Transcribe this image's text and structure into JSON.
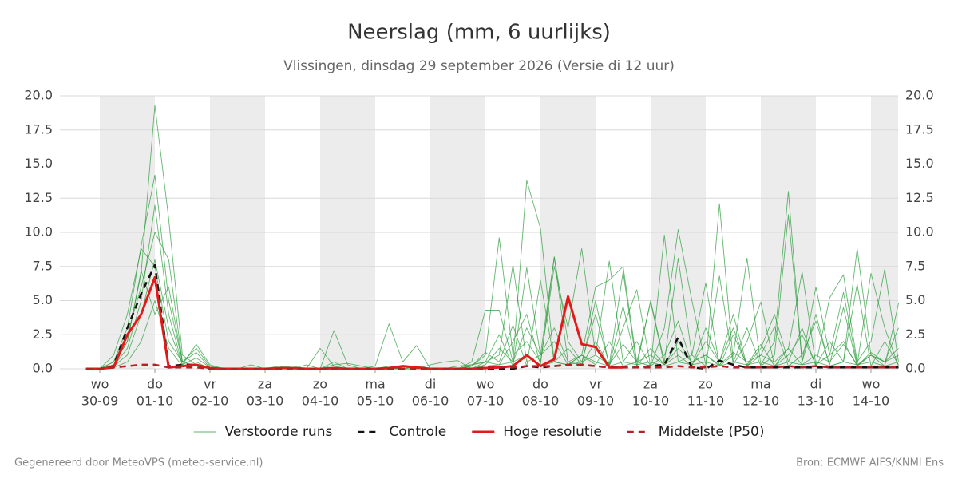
{
  "chart_data": {
    "type": "line",
    "title": "Neerslag (mm, 6 uurlijks)",
    "subtitle": "Vlissingen, dinsdag 29 september 2026 (Versie di 12 uur)",
    "footer_left": "Gegenereerd door MeteoVPS (meteo-service.nl)",
    "footer_right": "Bron: ECMWF AIFS/KNMI Ens",
    "grid": true,
    "legend": "bottom",
    "xlim": [
      -0.725,
      14.493
    ],
    "ylim": [
      0,
      20
    ],
    "yticks": [
      {
        "value": 0,
        "label": "0.0"
      },
      {
        "value": 2.5,
        "label": "2.5"
      },
      {
        "value": 5,
        "label": "5.0"
      },
      {
        "value": 7.5,
        "label": "7.5"
      },
      {
        "value": 10,
        "label": "10.0"
      },
      {
        "value": 12.5,
        "label": "12.5"
      },
      {
        "value": 15,
        "label": "15.0"
      },
      {
        "value": 17.5,
        "label": "17.5"
      },
      {
        "value": 20,
        "label": "20.0"
      }
    ],
    "xticks": [
      {
        "value": 0,
        "label": "wo",
        "date": "30-09"
      },
      {
        "value": 1,
        "label": "do",
        "date": "01-10"
      },
      {
        "value": 2,
        "label": "vr",
        "date": "02-10"
      },
      {
        "value": 3,
        "label": "za",
        "date": "03-10"
      },
      {
        "value": 4,
        "label": "zo",
        "date": "04-10"
      },
      {
        "value": 5,
        "label": "ma",
        "date": "05-10"
      },
      {
        "value": 6,
        "label": "di",
        "date": "06-10"
      },
      {
        "value": 7,
        "label": "wo",
        "date": "07-10"
      },
      {
        "value": 8,
        "label": "do",
        "date": "08-10"
      },
      {
        "value": 9,
        "label": "vr",
        "date": "09-10"
      },
      {
        "value": 10,
        "label": "za",
        "date": "10-10"
      },
      {
        "value": 11,
        "label": "zo",
        "date": "11-10"
      },
      {
        "value": 12,
        "label": "ma",
        "date": "12-10"
      },
      {
        "value": 13,
        "label": "di",
        "date": "13-10"
      },
      {
        "value": 14,
        "label": "wo",
        "date": "14-10"
      }
    ],
    "x": [
      -0.25,
      0,
      0.25,
      0.5,
      0.75,
      1,
      1.25,
      1.5,
      1.75,
      2,
      2.25,
      2.5,
      2.75,
      3,
      3.25,
      3.5,
      3.75,
      4,
      4.25,
      4.5,
      4.75,
      5,
      5.25,
      5.5,
      5.75,
      6,
      6.25,
      6.5,
      6.75,
      7,
      7.25,
      7.5,
      7.75,
      8,
      8.25,
      8.5,
      8.75,
      9,
      9.25,
      9.5,
      9.75,
      10,
      10.25,
      10.5,
      10.75,
      11,
      11.25,
      11.5,
      11.75,
      12,
      12.25,
      12.5,
      12.75,
      13,
      13.25,
      13.5,
      13.75,
      14,
      14.25,
      14.5
    ],
    "series": [
      {
        "name": "Verstoorde runs",
        "color": "#2e9e3e",
        "members": [
          [
            0,
            0,
            0.3,
            2,
            7,
            19.3,
            11,
            1,
            0.3,
            0,
            0,
            0,
            0,
            0,
            0.2,
            0,
            0,
            0,
            0,
            0,
            0,
            0,
            0.2,
            0,
            0,
            0,
            0,
            0,
            0.5,
            4.3,
            4.3,
            0.5,
            13.8,
            10.3,
            0.5,
            0.3,
            1,
            6,
            6.5,
            7.5,
            0.5,
            0.2,
            3,
            10.2,
            5,
            0.3,
            12.1,
            0.5,
            3,
            0.2,
            1,
            11.3,
            0.5,
            4,
            0.2,
            0.5,
            8.8,
            1,
            0.2,
            4.8
          ],
          [
            0,
            0,
            0.5,
            3,
            9,
            14.2,
            5,
            0.5,
            1.5,
            0.2,
            0,
            0,
            0,
            0,
            0,
            0,
            0,
            1.5,
            0.2,
            0,
            0,
            0.2,
            3.3,
            0.5,
            1.7,
            0,
            0,
            0,
            0.2,
            1,
            9.6,
            1,
            2,
            0.5,
            7.5,
            3,
            8.8,
            1,
            7.9,
            0.5,
            2,
            0.2,
            9.8,
            0.5,
            1,
            6.3,
            0.2,
            1,
            8.1,
            0.3,
            2,
            13,
            0.5,
            6,
            1,
            5.6,
            0.3,
            7,
            3,
            0.2
          ],
          [
            0,
            0,
            0.2,
            1.5,
            5,
            12,
            4,
            0.3,
            0.8,
            0.1,
            0,
            0,
            0,
            0,
            0,
            0,
            0.3,
            0,
            2.8,
            0.3,
            0,
            0,
            0.1,
            0,
            0,
            0,
            0,
            0.2,
            0.3,
            0.5,
            1,
            7.6,
            0.5,
            1,
            8.2,
            2,
            0.5,
            4,
            0.3,
            7.1,
            0.2,
            5,
            0.5,
            8.1,
            1,
            0.2,
            6.8,
            0.3,
            2,
            4.9,
            0.2,
            1.5,
            7.1,
            0.3,
            5.2,
            6.9,
            0.5,
            2,
            7.3,
            0.5
          ],
          [
            0,
            0,
            1,
            4,
            8.8,
            7.5,
            2,
            0.5,
            1.2,
            0.1,
            0,
            0,
            0.3,
            0,
            0,
            0,
            0,
            0,
            0.5,
            0,
            0,
            0,
            0,
            0,
            0,
            0.3,
            0.5,
            0.6,
            0,
            0.5,
            2.5,
            0.2,
            7.4,
            1,
            3,
            0.5,
            0.3,
            5,
            0.2,
            3,
            5.8,
            0.2,
            1,
            3.5,
            0.3,
            2,
            0.5,
            3,
            0.2,
            1.5,
            4,
            0.5,
            3,
            0.2,
            2,
            0.5,
            6.2,
            0.2,
            2,
            0.3
          ],
          [
            0,
            0,
            0.5,
            2.5,
            6,
            10,
            8,
            0.5,
            0.5,
            0,
            0,
            0,
            0,
            0,
            0.1,
            0.2,
            0,
            0,
            0.3,
            0.4,
            0.2,
            0,
            0.1,
            0,
            0.2,
            0,
            0,
            0,
            0.3,
            0.5,
            0.3,
            2,
            4,
            0.3,
            8.2,
            0.5,
            1,
            0.3,
            2,
            0.2,
            0.5,
            4.9,
            0.3,
            1,
            0.2,
            3,
            0.5,
            4,
            0.2,
            1,
            3.1,
            0.2,
            1,
            3.5,
            0.3,
            4.5,
            0.2,
            1,
            0.5,
            3
          ],
          [
            0,
            0,
            0.2,
            1,
            4,
            8,
            3,
            0.3,
            1.8,
            0.3,
            0,
            0,
            0,
            0,
            0,
            0,
            0,
            0,
            0,
            0,
            0,
            0,
            0,
            0,
            0,
            0,
            0,
            0,
            0.2,
            1.2,
            0.5,
            3.2,
            0.2,
            6.5,
            0.5,
            1.5,
            0.3,
            2,
            0.2,
            4.6,
            0.2,
            1.5,
            0.3,
            2,
            0.5,
            1,
            0.2,
            2.5,
            0.3,
            1.8,
            0.2,
            1,
            2.5,
            0.3,
            1,
            2,
            0.2,
            1.2,
            0.5,
            1
          ],
          [
            0,
            0,
            0.1,
            0.5,
            2,
            5,
            1.5,
            0.2,
            0.3,
            0,
            0,
            0,
            0,
            0,
            0,
            0,
            0,
            0,
            0,
            0,
            0,
            0,
            0,
            0,
            0,
            0,
            0,
            0,
            0,
            0.2,
            0.3,
            0.5,
            1,
            0.2,
            0.5,
            0.3,
            1,
            0.5,
            0.2,
            0.5,
            0.3,
            0.5,
            0.2,
            0.5,
            0.3,
            0.5,
            0.2,
            0.5,
            0.3,
            0.5,
            0.2,
            0.5,
            0.3,
            0.5,
            0.2,
            0.5,
            0.3,
            0.5,
            0.2,
            0.5
          ],
          [
            0,
            0,
            0.3,
            2,
            7.2,
            4,
            6,
            0.5,
            0.2,
            0,
            0,
            0,
            0,
            0,
            0,
            0,
            0,
            0,
            0,
            0,
            0,
            0,
            0,
            0,
            0,
            0,
            0,
            0,
            0,
            0.3,
            1.5,
            0.5,
            3,
            1,
            2,
            0.3,
            0.5,
            1,
            0.3,
            1.8,
            0.5,
            1,
            0.3,
            1.5,
            0.5,
            1,
            0.3,
            1.2,
            0.5,
            1,
            0.5,
            1.5,
            0.3,
            1,
            0.5,
            1.8,
            0.3,
            1,
            0.5,
            1.5
          ]
        ]
      },
      {
        "name": "Controle",
        "color": "#111111",
        "dash": true,
        "values": [
          0,
          0,
          0.2,
          3,
          5.5,
          7.6,
          0.2,
          0.3,
          0.3,
          0,
          0,
          0,
          0,
          0,
          0,
          0,
          0,
          0,
          0,
          0,
          0,
          0,
          0,
          0,
          0,
          0,
          0,
          0,
          0,
          0,
          0,
          0,
          0.2,
          0.1,
          0.2,
          0.3,
          0.3,
          0.2,
          0.1,
          0.1,
          0.1,
          0.2,
          0.3,
          2.3,
          0.1,
          0,
          0.6,
          0.3,
          0.1,
          0.1,
          0.1,
          0.1,
          0.1,
          0.1,
          0.1,
          0.1,
          0.1,
          0.1,
          0.1,
          0.1
        ]
      },
      {
        "name": "Hoge resolutie",
        "color": "#e31a1c",
        "values": [
          0,
          0,
          0.1,
          2.5,
          4,
          6.7,
          0.1,
          0.2,
          0.3,
          0.05,
          0,
          0,
          0,
          0,
          0.05,
          0.05,
          0,
          0,
          0.05,
          0,
          0,
          0,
          0.05,
          0.2,
          0.1,
          0,
          0,
          0,
          0,
          0.05,
          0.1,
          0.2,
          1,
          0.2,
          0.7,
          5.3,
          1.8,
          1.6,
          0.1,
          0.1,
          null,
          null,
          null,
          null,
          null,
          null,
          null,
          null,
          null,
          null,
          null,
          null,
          null,
          null,
          null,
          null,
          null,
          null,
          null,
          null
        ]
      },
      {
        "name": "Middelste (P50)",
        "color": "#b22222",
        "dash": true,
        "values": [
          0,
          0,
          0.1,
          0.2,
          0.3,
          0.3,
          0.1,
          0.1,
          0.1,
          0,
          0,
          0,
          0,
          0,
          0,
          0,
          0,
          0,
          0,
          0,
          0,
          0,
          0,
          0,
          0,
          0,
          0,
          0,
          0,
          0.1,
          0.1,
          0.1,
          0.2,
          0.2,
          0.2,
          0.3,
          0.3,
          0.2,
          0.1,
          0.1,
          0.1,
          0.1,
          0.1,
          0.2,
          0.1,
          0.1,
          0.2,
          0.1,
          0.1,
          0.1,
          0.1,
          0.2,
          0.1,
          0.2,
          0.1,
          0.1,
          0.1,
          0.1,
          0.1,
          0.1
        ]
      }
    ]
  }
}
